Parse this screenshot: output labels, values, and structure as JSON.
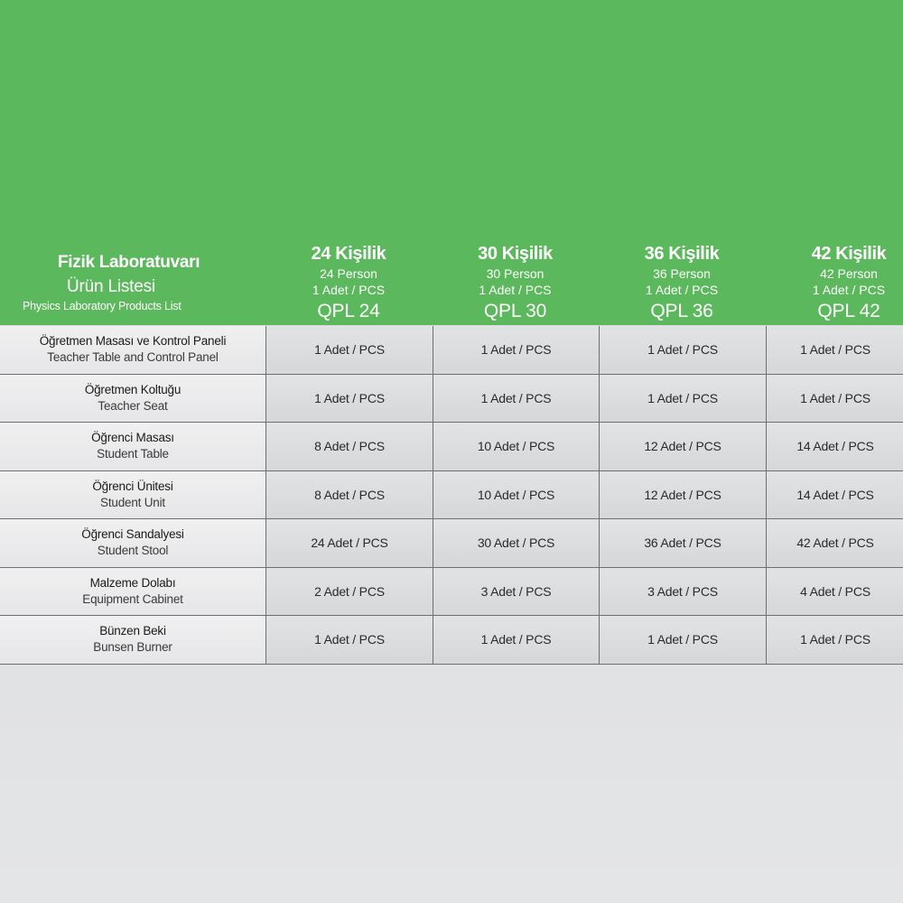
{
  "header": {
    "title": "Fizik Laboratuvarı",
    "subtitle": "Ürün Listesi",
    "title_en": "Physics Laboratory Products List"
  },
  "columns": [
    {
      "kisilik": "24 Kişilik",
      "person": "24 Person",
      "adet": "1 Adet / PCS",
      "model": "QPL 24"
    },
    {
      "kisilik": "30 Kişilik",
      "person": "30 Person",
      "adet": "1 Adet / PCS",
      "model": "QPL 30"
    },
    {
      "kisilik": "36 Kişilik",
      "person": "36 Person",
      "adet": "1 Adet / PCS",
      "model": "QPL 36"
    },
    {
      "kisilik": "42 Kişilik",
      "person": "42 Person",
      "adet": "1 Adet / PCS",
      "model": "QPL 42"
    }
  ],
  "rows": [
    {
      "tr": "Öğretmen Masası ve Kontrol Paneli",
      "en": "Teacher Table and Control Panel",
      "values": [
        "1 Adet / PCS",
        "1 Adet / PCS",
        "1 Adet / PCS",
        "1 Adet / PCS"
      ]
    },
    {
      "tr": "Öğretmen Koltuğu",
      "en": "Teacher Seat",
      "values": [
        "1 Adet / PCS",
        "1 Adet / PCS",
        "1 Adet / PCS",
        "1 Adet / PCS"
      ]
    },
    {
      "tr": "Öğrenci Masası",
      "en": "Student Table",
      "values": [
        "8 Adet / PCS",
        "10 Adet / PCS",
        "12 Adet / PCS",
        "14 Adet / PCS"
      ]
    },
    {
      "tr": "Öğrenci Ünitesi",
      "en": "Student Unit",
      "values": [
        "8 Adet / PCS",
        "10 Adet / PCS",
        "12 Adet / PCS",
        "14 Adet / PCS"
      ]
    },
    {
      "tr": "Öğrenci Sandalyesi",
      "en": "Student Stool",
      "values": [
        "24 Adet / PCS",
        "30 Adet / PCS",
        "36 Adet / PCS",
        "42 Adet / PCS"
      ]
    },
    {
      "tr": "Malzeme Dolabı",
      "en": "Equipment Cabinet",
      "values": [
        "2 Adet / PCS",
        "3 Adet / PCS",
        "3 Adet / PCS",
        "4 Adet / PCS"
      ]
    },
    {
      "tr": "Bünzen Beki",
      "en": "Bunsen Burner",
      "values": [
        "1 Adet / PCS",
        "1 Adet / PCS",
        "1 Adet / PCS",
        "1 Adet / PCS"
      ]
    }
  ],
  "colors": {
    "green": "#5cb85c",
    "grid": "#6e6f72"
  }
}
